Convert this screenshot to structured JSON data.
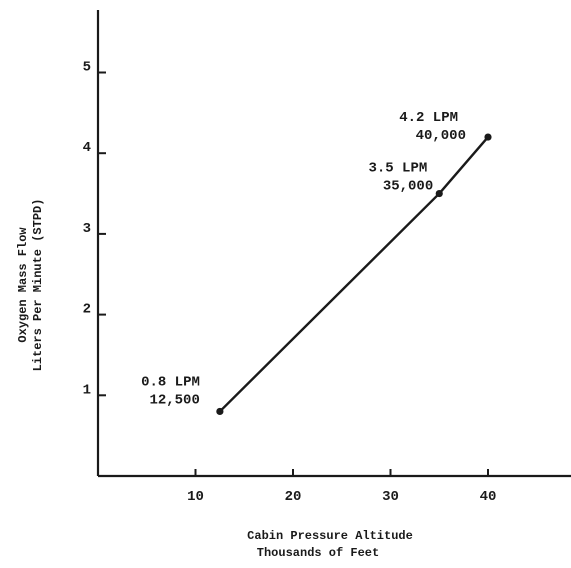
{
  "chart_data": {
    "type": "line",
    "xlabel": [
      "Cabin Pressure Altitude",
      "Thousands of Feet"
    ],
    "ylabel": [
      "Oxygen Mass Flow",
      "Liters Per Minute (STPD)"
    ],
    "x_ticks": [
      "10",
      "20",
      "30",
      "40"
    ],
    "y_ticks": [
      "1",
      "2",
      "3",
      "4",
      "5"
    ],
    "xlim": [
      0,
      48
    ],
    "ylim": [
      0,
      6
    ],
    "grid": false,
    "series": [
      {
        "x": [
          12.5,
          35,
          40
        ],
        "y": [
          0.8,
          3.5,
          4.2
        ]
      }
    ],
    "annotations": [
      {
        "lines": [
          "0.8 LPM",
          "12,500"
        ],
        "x": 12.5,
        "y": 0.8
      },
      {
        "lines": [
          "3.5 LPM",
          "35,000"
        ],
        "x": 35,
        "y": 3.5
      },
      {
        "lines": [
          "4.2 LPM",
          "40,000"
        ],
        "x": 40,
        "y": 4.2
      }
    ]
  }
}
